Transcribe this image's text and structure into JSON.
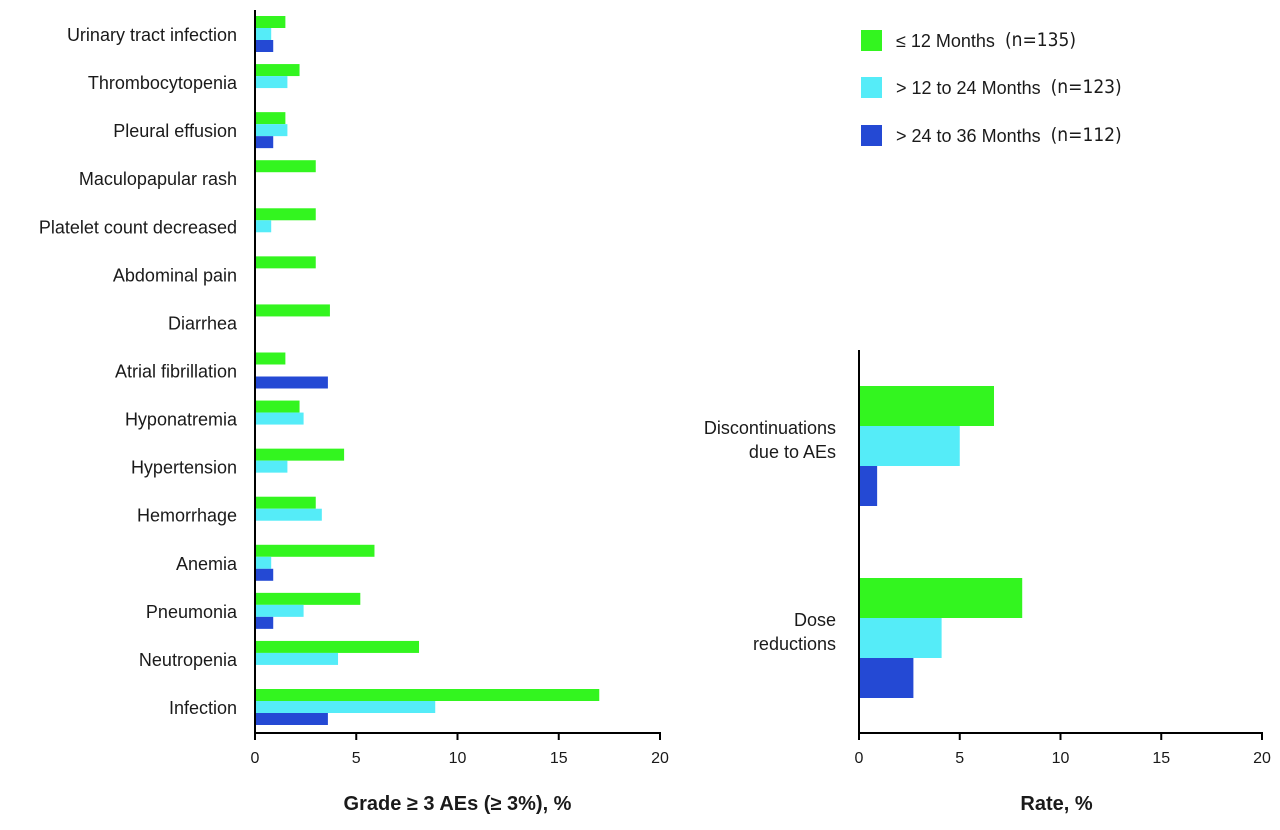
{
  "colors": {
    "le12": "#33f51f",
    "m12to24": "#55ecf8",
    "m24to36": "#2449d4"
  },
  "legend": {
    "items": [
      {
        "label": "≤ 12 Months",
        "n": "(n=135)",
        "color_key": "le12"
      },
      {
        "label": "> 12 to 24 Months",
        "n": "(n=123)",
        "color_key": "m12to24"
      },
      {
        "label": "> 24 to 36 Months",
        "n": "(n=112)",
        "color_key": "m24to36"
      }
    ]
  },
  "chart_data": [
    {
      "type": "bar",
      "orientation": "horizontal",
      "title": "",
      "xlabel": "Grade ≥ 3 AEs (≥ 3%), %",
      "ylabel": "",
      "xlim": [
        0,
        20
      ],
      "xticks": [
        "0",
        "5",
        "10",
        "15",
        "20"
      ],
      "categories": [
        "Urinary tract infection",
        "Thrombocytopenia",
        "Pleural effusion",
        "Maculopapular rash",
        "Platelet count decreased",
        "Abdominal pain",
        "Diarrhea",
        "Atrial fibrillation",
        "Hyponatremia",
        "Hypertension",
        "Hemorrhage",
        "Anemia",
        "Pneumonia",
        "Neutropenia",
        "Infection"
      ],
      "series": [
        {
          "name": "≤ 12 Months (n=135)",
          "values": [
            1.5,
            2.2,
            1.5,
            3.0,
            3.0,
            3.0,
            3.7,
            1.5,
            2.2,
            4.4,
            3.0,
            5.9,
            5.2,
            8.1,
            17.0
          ]
        },
        {
          "name": "> 12 to 24 Months (n=123)",
          "values": [
            0.8,
            1.6,
            1.6,
            0,
            0.8,
            0,
            0,
            0,
            2.4,
            1.6,
            3.3,
            0.8,
            2.4,
            4.1,
            8.9
          ]
        },
        {
          "name": "> 24 to 36 Months (n=112)",
          "values": [
            0.9,
            0,
            0.9,
            0,
            0,
            0,
            0,
            3.6,
            0,
            0,
            0,
            0.9,
            0.9,
            0,
            3.6
          ]
        }
      ]
    },
    {
      "type": "bar",
      "orientation": "horizontal",
      "title": "",
      "xlabel": "Rate, %",
      "ylabel": "",
      "xlim": [
        0,
        20
      ],
      "xticks": [
        "0",
        "5",
        "10",
        "15",
        "20"
      ],
      "categories": [
        "Discontinuations|due to AEs",
        "Dose|reductions"
      ],
      "series": [
        {
          "name": "≤ 12 Months (n=135)",
          "values": [
            6.7,
            8.1
          ]
        },
        {
          "name": "> 12 to 24 Months (n=123)",
          "values": [
            5.0,
            4.1
          ]
        },
        {
          "name": "> 24 to 36 Months (n=112)",
          "values": [
            0.9,
            2.7
          ]
        }
      ]
    }
  ]
}
